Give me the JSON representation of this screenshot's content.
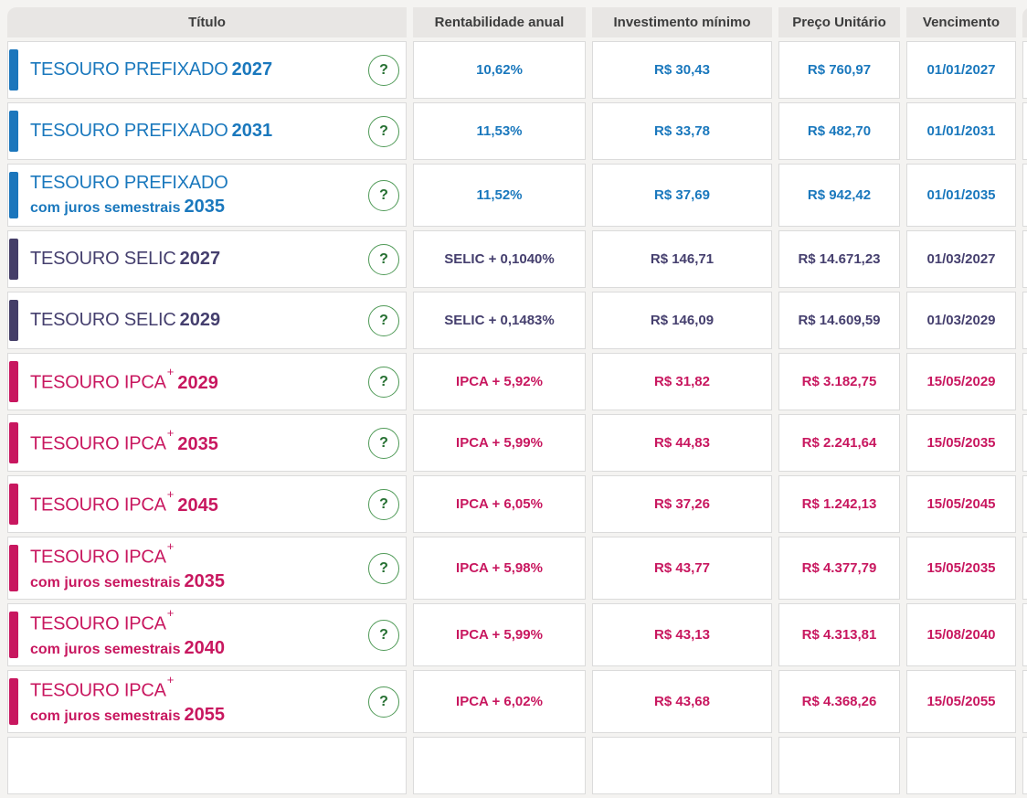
{
  "colors": {
    "page_bg": "#f4f3f1",
    "prefixado": "#1b76bc",
    "prefixado_text": "#1a78bd",
    "selic": "#443e68",
    "selic_text": "#453f6e",
    "ipca": "#c8175f",
    "ipca_text": "#c8175f",
    "help_green_border": "#4f9a57",
    "help_green_glyph": "#256f31",
    "header_bg": "#e8e6e4",
    "header_text": "#3c3c3c"
  },
  "table": {
    "columns": [
      "Título",
      "Rentabilidade anual",
      "Investimento mínimo",
      "Preço Unitário",
      "Vencimento"
    ],
    "help_glyph": "?",
    "rows": [
      {
        "category": "prefixado",
        "name": "TESOURO PREFIXADO",
        "sup": "",
        "sub": "",
        "year": "2027",
        "rate": "10,62%",
        "min": "R$ 30,43",
        "price": "R$ 760,97",
        "maturity": "01/01/2027"
      },
      {
        "category": "prefixado",
        "name": "TESOURO PREFIXADO",
        "sup": "",
        "sub": "",
        "year": "2031",
        "rate": "11,53%",
        "min": "R$ 33,78",
        "price": "R$ 482,70",
        "maturity": "01/01/2031"
      },
      {
        "category": "prefixado",
        "name": "TESOURO PREFIXADO",
        "sup": "",
        "sub": "com juros semestrais",
        "year": "2035",
        "rate": "11,52%",
        "min": "R$ 37,69",
        "price": "R$ 942,42",
        "maturity": "01/01/2035"
      },
      {
        "category": "selic",
        "name": "TESOURO SELIC",
        "sup": "",
        "sub": "",
        "year": "2027",
        "rate": "SELIC + 0,1040%",
        "min": "R$ 146,71",
        "price": "R$ 14.671,23",
        "maturity": "01/03/2027"
      },
      {
        "category": "selic",
        "name": "TESOURO SELIC",
        "sup": "",
        "sub": "",
        "year": "2029",
        "rate": "SELIC + 0,1483%",
        "min": "R$ 146,09",
        "price": "R$ 14.609,59",
        "maturity": "01/03/2029"
      },
      {
        "category": "ipca",
        "name": "TESOURO IPCA",
        "sup": "+",
        "sub": "",
        "year": "2029",
        "rate": "IPCA + 5,92%",
        "min": "R$ 31,82",
        "price": "R$ 3.182,75",
        "maturity": "15/05/2029"
      },
      {
        "category": "ipca",
        "name": "TESOURO IPCA",
        "sup": "+",
        "sub": "",
        "year": "2035",
        "rate": "IPCA + 5,99%",
        "min": "R$ 44,83",
        "price": "R$ 2.241,64",
        "maturity": "15/05/2035"
      },
      {
        "category": "ipca",
        "name": "TESOURO IPCA",
        "sup": "+",
        "sub": "",
        "year": "2045",
        "rate": "IPCA + 6,05%",
        "min": "R$ 37,26",
        "price": "R$ 1.242,13",
        "maturity": "15/05/2045"
      },
      {
        "category": "ipca",
        "name": "TESOURO IPCA",
        "sup": "+",
        "sub": "com juros semestrais",
        "year": "2035",
        "rate": "IPCA + 5,98%",
        "min": "R$ 43,77",
        "price": "R$ 4.377,79",
        "maturity": "15/05/2035"
      },
      {
        "category": "ipca",
        "name": "TESOURO IPCA",
        "sup": "+",
        "sub": "com juros semestrais",
        "year": "2040",
        "rate": "IPCA + 5,99%",
        "min": "R$ 43,13",
        "price": "R$ 4.313,81",
        "maturity": "15/08/2040"
      },
      {
        "category": "ipca",
        "name": "TESOURO IPCA",
        "sup": "+",
        "sub": "com juros semestrais",
        "year": "2055",
        "rate": "IPCA + 6,02%",
        "min": "R$ 43,68",
        "price": "R$ 4.368,26",
        "maturity": "15/05/2055"
      }
    ]
  }
}
